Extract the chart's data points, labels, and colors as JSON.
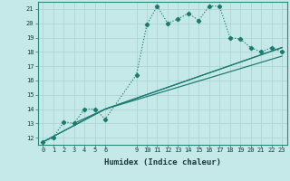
{
  "xlabel": "Humidex (Indice chaleur)",
  "bg_color": "#c5e8e8",
  "grid_color": "#afd4d4",
  "line_color": "#1a7a6e",
  "xlim": [
    -0.5,
    23.5
  ],
  "ylim": [
    11.5,
    21.5
  ],
  "xticks": [
    0,
    1,
    2,
    3,
    4,
    5,
    6,
    9,
    10,
    11,
    12,
    13,
    14,
    15,
    16,
    17,
    18,
    19,
    20,
    21,
    22,
    23
  ],
  "yticks": [
    12,
    13,
    14,
    15,
    16,
    17,
    18,
    19,
    20,
    21
  ],
  "series1_x": [
    0,
    1,
    2,
    3,
    4,
    5,
    6,
    9,
    10,
    11,
    12,
    13,
    14,
    15,
    16,
    17,
    18,
    19,
    20,
    21,
    22,
    23
  ],
  "series1_y": [
    11.7,
    12.0,
    13.1,
    13.0,
    14.0,
    14.0,
    13.3,
    16.4,
    19.9,
    21.2,
    20.0,
    20.3,
    20.7,
    20.2,
    21.2,
    21.2,
    19.0,
    18.9,
    18.3,
    18.0,
    18.3,
    18.0
  ],
  "line2_x": [
    0,
    6,
    23
  ],
  "line2_y": [
    11.7,
    14.0,
    18.3
  ],
  "line3_x": [
    0,
    6,
    23
  ],
  "line3_y": [
    11.7,
    14.0,
    17.7
  ],
  "line4_x": [
    3,
    6,
    23
  ],
  "line4_y": [
    13.0,
    14.0,
    18.3
  ]
}
